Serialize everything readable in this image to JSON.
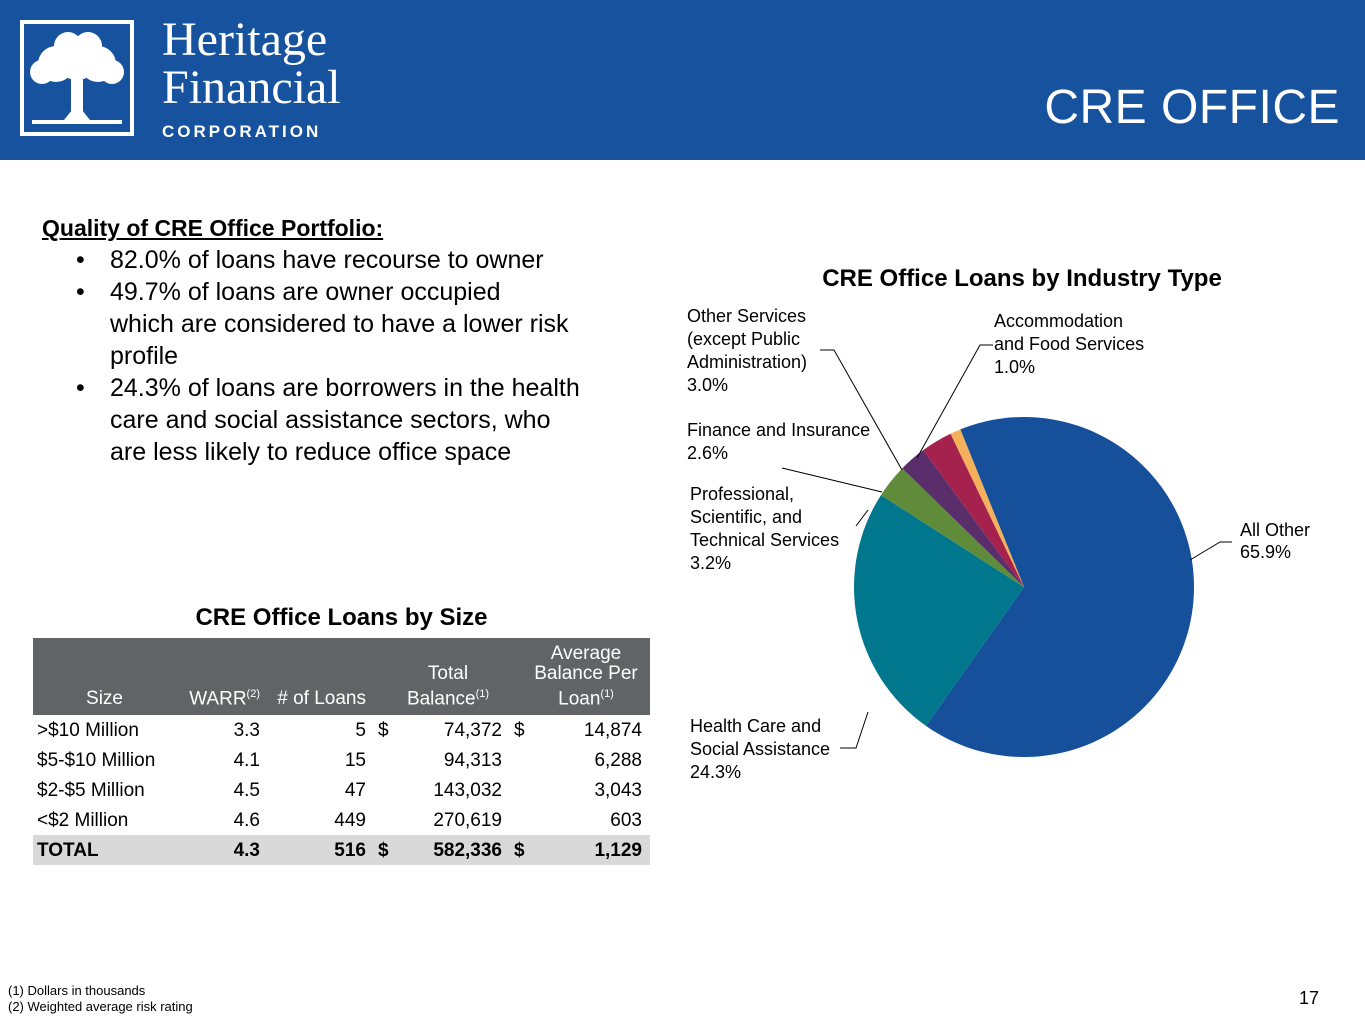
{
  "header": {
    "logo": {
      "line1": "Heritage",
      "line2": "Financial",
      "line3": "CORPORATION"
    },
    "title": "CRE OFFICE",
    "background_color": "#16529e"
  },
  "quality": {
    "heading": "Quality of CRE Office Portfolio:",
    "bullets": [
      "82.0% of loans have recourse to owner",
      "49.7% of loans are owner occupied which are considered to have a lower risk profile",
      "24.3% of loans are borrowers in the health care and social assistance sectors, who are less likely to reduce office space"
    ]
  },
  "table": {
    "title": "CRE Office Loans by Size",
    "headers": {
      "size": "Size",
      "warr": "WARR",
      "warr_sup": "(2)",
      "count": "# of Loans",
      "balance_l1": "Total",
      "balance_l2": "Balance",
      "balance_sup": "(1)",
      "avg_l1": "Average",
      "avg_l2": "Balance Per",
      "avg_l3": "Loan",
      "avg_sup": "(1)"
    },
    "rows": [
      {
        "size": ">$10 Million",
        "warr": "3.3",
        "count": "5",
        "d1": "$",
        "balance": "74,372",
        "d2": "$",
        "avg": "14,874"
      },
      {
        "size": "$5-$10 Million",
        "warr": "4.1",
        "count": "15",
        "d1": "",
        "balance": "94,313",
        "d2": "",
        "avg": "6,288"
      },
      {
        "size": "$2-$5 Million",
        "warr": "4.5",
        "count": "47",
        "d1": "",
        "balance": "143,032",
        "d2": "",
        "avg": "3,043"
      },
      {
        "size": "<$2 Million",
        "warr": "4.6",
        "count": "449",
        "d1": "",
        "balance": "270,619",
        "d2": "",
        "avg": "603"
      }
    ],
    "total": {
      "size": "TOTAL",
      "warr": "4.3",
      "count": "516",
      "d1": "$",
      "balance": "582,336",
      "d2": "$",
      "avg": "1,129"
    }
  },
  "chart_data": {
    "type": "pie",
    "title": "CRE Office Loans by Industry Type",
    "slices": [
      {
        "name": "All Other",
        "value": 65.9,
        "label": "65.9%",
        "color": "#16509b"
      },
      {
        "name": "Health Care and Social Assistance",
        "value": 24.3,
        "label": "24.3%",
        "color": "#00778d"
      },
      {
        "name": "Professional, Scientific, and Technical Services",
        "value": 3.2,
        "label": "3.2%",
        "color": "#5f8b3a"
      },
      {
        "name": "Finance and Insurance",
        "value": 2.6,
        "label": "2.6%",
        "color": "#5a2e6b"
      },
      {
        "name": "Other Services (except Public Administration)",
        "value": 3.0,
        "label": "3.0%",
        "color": "#a5214e"
      },
      {
        "name": "Accommodation and Food Services",
        "value": 1.0,
        "label": "1.0%",
        "color": "#f5b05b"
      }
    ],
    "label_lines": {
      "all_other": [
        "All Other"
      ],
      "health": [
        "Health Care and",
        "Social Assistance"
      ],
      "professional": [
        "Professional,",
        "Scientific, and",
        "Technical Services"
      ],
      "finance": [
        "Finance and Insurance"
      ],
      "other_services": [
        "Other Services",
        "(except Public",
        "Administration)"
      ],
      "accommodation": [
        "Accommodation",
        "and Food Services"
      ]
    }
  },
  "footnotes": [
    "(1) Dollars in thousands",
    "(2) Weighted average risk rating"
  ],
  "page_number": "17"
}
